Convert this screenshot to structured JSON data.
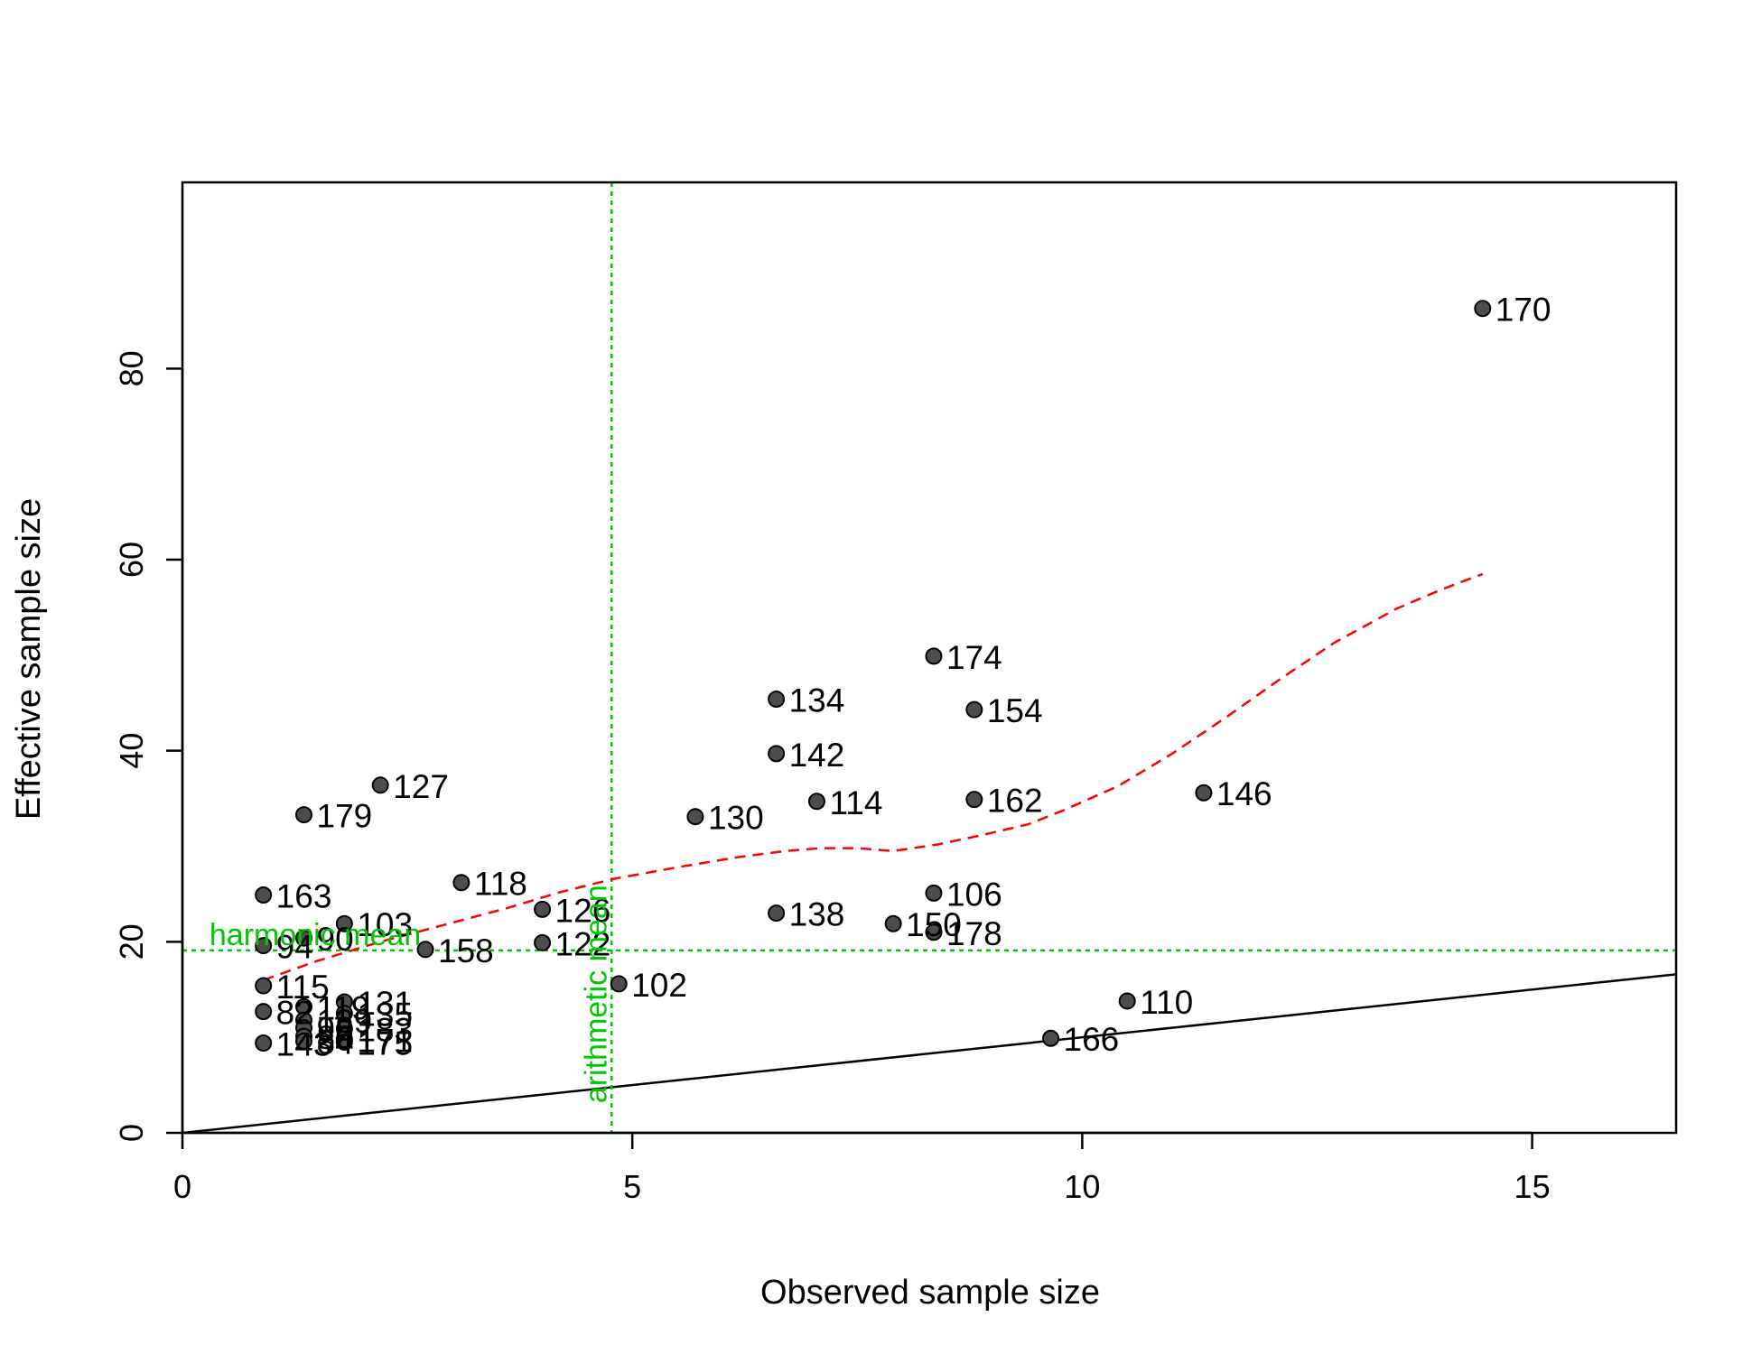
{
  "chart_data": {
    "type": "scatter",
    "title": "",
    "xlabel": "Observed sample size",
    "ylabel": "Effective sample size",
    "xlim": [
      0,
      16.6
    ],
    "ylim": [
      0,
      99.5
    ],
    "xticks": [
      0,
      5,
      10,
      15
    ],
    "yticks": [
      0,
      20,
      40,
      60,
      80
    ],
    "grid": false,
    "points": [
      {
        "label": "170",
        "x": 14.45,
        "y": 86.3
      },
      {
        "label": "174",
        "x": 8.35,
        "y": 49.9
      },
      {
        "label": "134",
        "x": 6.6,
        "y": 45.4
      },
      {
        "label": "154",
        "x": 8.8,
        "y": 44.3
      },
      {
        "label": "142",
        "x": 6.6,
        "y": 39.7
      },
      {
        "label": "127",
        "x": 2.2,
        "y": 36.4
      },
      {
        "label": "146",
        "x": 11.35,
        "y": 35.6
      },
      {
        "label": "162",
        "x": 8.8,
        "y": 34.9
      },
      {
        "label": "114",
        "x": 7.05,
        "y": 34.7
      },
      {
        "label": "179",
        "x": 1.35,
        "y": 33.3
      },
      {
        "label": "130",
        "x": 5.7,
        "y": 33.1
      },
      {
        "label": "118",
        "x": 3.1,
        "y": 26.2
      },
      {
        "label": "106",
        "x": 8.35,
        "y": 25.1
      },
      {
        "label": "163",
        "x": 0.9,
        "y": 24.9
      },
      {
        "label": "126",
        "x": 4.0,
        "y": 23.4
      },
      {
        "label": "138",
        "x": 6.6,
        "y": 23.0
      },
      {
        "label": "150",
        "x": 7.9,
        "y": 21.9
      },
      {
        "label": "103",
        "x": 1.8,
        "y": 21.9
      },
      {
        "label": "178",
        "x": 8.35,
        "y": 21.0
      },
      {
        "label": "90",
        "x": 1.35,
        "y": 20.4
      },
      {
        "label": "122",
        "x": 4.0,
        "y": 19.9
      },
      {
        "label": "94",
        "x": 0.9,
        "y": 19.6
      },
      {
        "label": "158",
        "x": 2.7,
        "y": 19.2
      },
      {
        "label": "102",
        "x": 4.85,
        "y": 15.6
      },
      {
        "label": "115",
        "x": 0.9,
        "y": 15.4
      },
      {
        "label": "110",
        "x": 10.5,
        "y": 13.8
      },
      {
        "label": "131",
        "x": 1.8,
        "y": 13.7
      },
      {
        "label": "119",
        "x": 1.35,
        "y": 13.2
      },
      {
        "label": "82",
        "x": 0.9,
        "y": 12.7
      },
      {
        "label": "135",
        "x": 1.8,
        "y": 12.5
      },
      {
        "label": "139",
        "x": 1.35,
        "y": 11.8
      },
      {
        "label": "98",
        "x": 1.35,
        "y": 11.0
      },
      {
        "label": "183",
        "x": 1.8,
        "y": 10.9
      },
      {
        "label": "86",
        "x": 1.35,
        "y": 10.1
      },
      {
        "label": "166",
        "x": 9.65,
        "y": 9.9
      },
      {
        "label": "171",
        "x": 1.8,
        "y": 9.8
      },
      {
        "label": "175",
        "x": 1.8,
        "y": 9.5
      },
      {
        "label": "143",
        "x": 0.9,
        "y": 9.4
      },
      {
        "label": "84",
        "x": 1.35,
        "y": 9.6
      }
    ],
    "smoother": {
      "name": "",
      "style": "dashed",
      "color": "#ff0000",
      "x": [
        0.9,
        1.5,
        2.2,
        3.0,
        3.6,
        4.2,
        4.8,
        5.5,
        6.2,
        6.7,
        7.1,
        7.5,
        7.9,
        8.4,
        8.9,
        9.4,
        9.8,
        10.4,
        11.0,
        11.6,
        12.2,
        12.8,
        13.5,
        14.0,
        14.45
      ],
      "y": [
        16.0,
        18.0,
        20.0,
        22.0,
        23.5,
        25.2,
        26.6,
        27.8,
        28.9,
        29.5,
        29.8,
        29.8,
        29.5,
        30.2,
        31.2,
        32.3,
        33.8,
        36.3,
        39.7,
        43.5,
        47.5,
        51.3,
        54.9,
        56.9,
        58.5
      ]
    },
    "reference_lines": [
      {
        "type": "identity",
        "color": "#000000",
        "style": "solid"
      },
      {
        "type": "vertical",
        "x": 4.77,
        "label": "arithmetic mean",
        "color": "#00c800",
        "style": "dotted"
      },
      {
        "type": "horizontal",
        "y": 19.1,
        "label": "harmonic mean",
        "color": "#00c800",
        "style": "dotted"
      }
    ],
    "colors": {
      "point": "#4d4d4d",
      "point_stroke": "#000000",
      "reference": "#00c800",
      "smoother": "#ff0000",
      "axis": "#000000"
    }
  }
}
